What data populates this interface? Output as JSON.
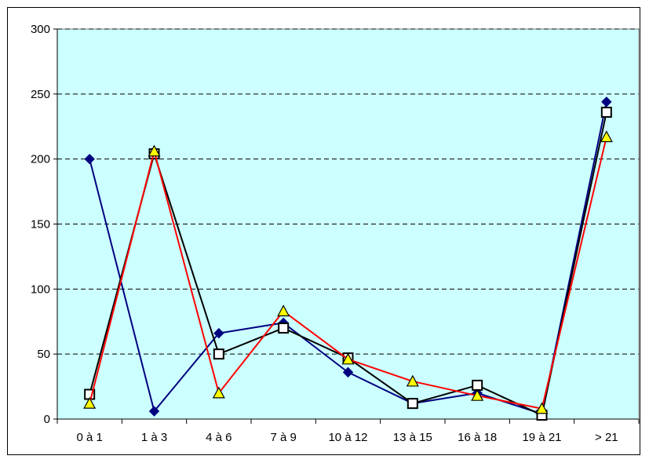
{
  "chart_data": {
    "type": "line",
    "categories": [
      "0 à 1",
      "1 à 3",
      "4 à 6",
      "7 à 9",
      "10 à 12",
      "13 à 15",
      "16 à 18",
      "19 à 21",
      "> 21"
    ],
    "ylim": [
      0,
      300
    ],
    "yticks": [
      "0",
      "50",
      "100",
      "150",
      "200",
      "250",
      "300"
    ],
    "grid": "horizontal dashed",
    "plot_background": "#ccffff",
    "series": [
      {
        "color": "#000080",
        "marker": "diamond",
        "values": [
          200,
          6,
          66,
          74,
          36,
          12,
          20,
          4,
          244
        ]
      },
      {
        "color": "#000000",
        "marker": "square",
        "values": [
          19,
          204,
          50,
          70,
          47,
          12,
          26,
          3,
          236
        ]
      },
      {
        "color": "#ff0000",
        "marker": "triangle",
        "marker_fill": "#ffff00",
        "values": [
          12,
          206,
          20,
          83,
          46,
          29,
          18,
          8,
          217
        ]
      }
    ]
  }
}
